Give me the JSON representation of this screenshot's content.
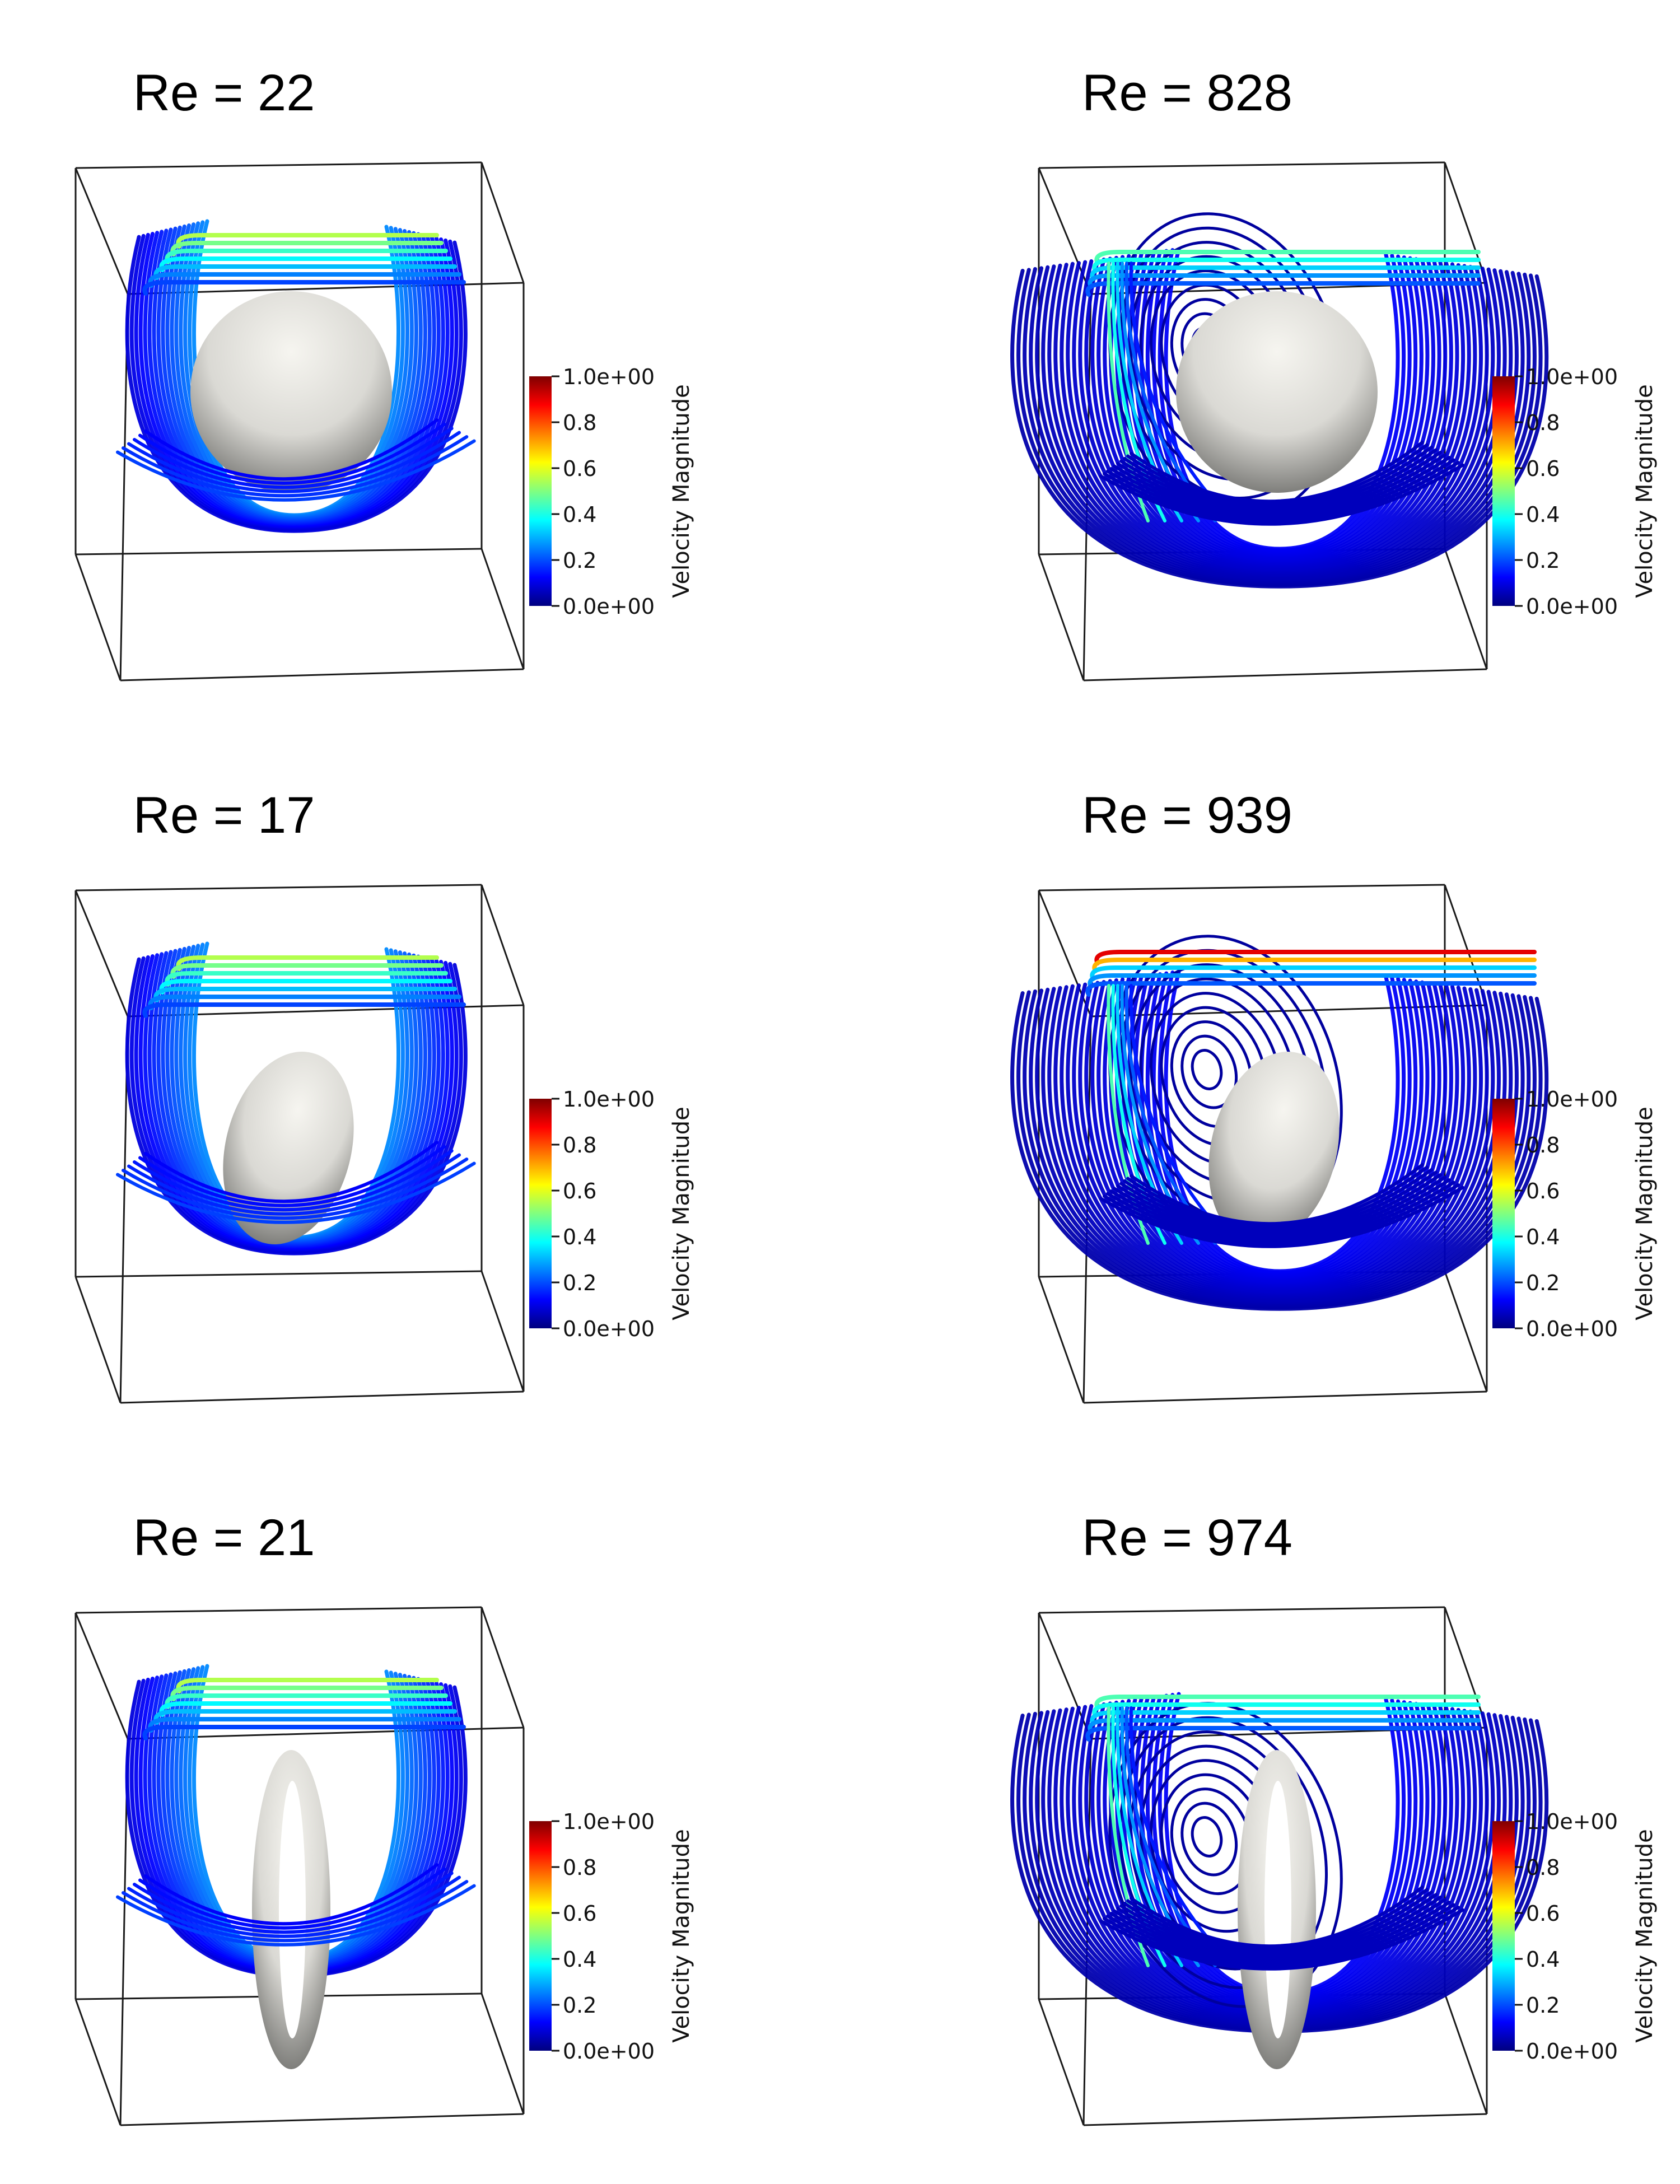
{
  "panels": [
    {
      "title": "Re = 22",
      "shape": "sphere",
      "flow": "low"
    },
    {
      "title": "Re = 828",
      "shape": "sphere",
      "flow": "high"
    },
    {
      "title": "Re = 17",
      "shape": "ellipsoid",
      "flow": "low"
    },
    {
      "title": "Re = 939",
      "shape": "ellipsoid",
      "flow": "high"
    },
    {
      "title": "Re = 21",
      "shape": "torus",
      "flow": "low"
    },
    {
      "title": "Re = 974",
      "shape": "torus",
      "flow": "high"
    }
  ],
  "colorbar": {
    "title": "Velocity Magnitude",
    "tick_labels": [
      "1.0e+00",
      "0.8",
      "0.6",
      "0.4",
      "0.2",
      "0.0e+00"
    ],
    "range": [
      0,
      1
    ],
    "colors": [
      "#00007f",
      "#0000ff",
      "#0080ff",
      "#00ffff",
      "#80ff80",
      "#ffff00",
      "#ff8000",
      "#ff0000",
      "#7f0000"
    ]
  }
}
